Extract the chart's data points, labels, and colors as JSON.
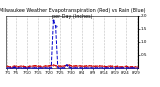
{
  "title": "Milwaukee Weather Evapotranspiration (Red) vs Rain (Blue)\nper Day (Inches)",
  "title_fontsize": 3.5,
  "background_color": "#ffffff",
  "grid_color": "#888888",
  "num_days": 60,
  "red_values": [
    0.06,
    0.04,
    0.05,
    0.07,
    0.06,
    0.05,
    0.07,
    0.06,
    0.05,
    0.04,
    0.06,
    0.07,
    0.08,
    0.09,
    0.07,
    0.06,
    0.05,
    0.07,
    0.09,
    0.08,
    0.1,
    0.11,
    0.09,
    0.08,
    0.07,
    0.06,
    0.08,
    0.1,
    0.11,
    0.09,
    0.07,
    0.08,
    0.09,
    0.08,
    0.07,
    0.06,
    0.08,
    0.09,
    0.08,
    0.07,
    0.06,
    0.07,
    0.08,
    0.07,
    0.06,
    0.05,
    0.06,
    0.07,
    0.06,
    0.05,
    0.06,
    0.05,
    0.04,
    0.05,
    0.06,
    0.05,
    0.04,
    0.05,
    0.04,
    0.05
  ],
  "blue_values": [
    0.0,
    0.0,
    0.0,
    0.02,
    0.0,
    0.0,
    0.0,
    0.0,
    0.0,
    0.01,
    0.0,
    0.0,
    0.0,
    0.0,
    0.0,
    0.0,
    0.0,
    0.0,
    0.0,
    0.0,
    0.0,
    1.85,
    1.6,
    0.0,
    0.0,
    0.0,
    0.0,
    0.12,
    0.05,
    0.0,
    0.0,
    0.0,
    0.0,
    0.0,
    0.0,
    0.0,
    0.0,
    0.0,
    0.0,
    0.0,
    0.0,
    0.0,
    0.0,
    0.0,
    0.0,
    0.0,
    0.0,
    0.0,
    0.0,
    0.0,
    0.0,
    0.0,
    0.0,
    0.0,
    0.0,
    0.0,
    0.0,
    0.0,
    0.0,
    0.0
  ],
  "x_tick_positions": [
    0,
    4,
    9,
    14,
    19,
    24,
    29,
    34,
    39,
    44,
    49,
    54,
    59
  ],
  "x_tick_labels": [
    "7/1",
    "7/5",
    "7/10",
    "7/15",
    "7/20",
    "7/25",
    "7/30",
    "8/4",
    "8/9",
    "8/14",
    "8/19",
    "8/24",
    "8/29"
  ],
  "ylim": [
    0,
    2.0
  ],
  "ytick_positions": [
    0.5,
    1.0,
    1.5,
    2.0
  ],
  "ytick_labels": [
    "0.5",
    "1.0",
    "1.5",
    "2.0"
  ],
  "ytick_fontsize": 3.0,
  "xtick_fontsize": 2.8,
  "red_color": "#cc0000",
  "blue_color": "#0000cc",
  "line_width": 0.7,
  "marker_size": 0.8
}
